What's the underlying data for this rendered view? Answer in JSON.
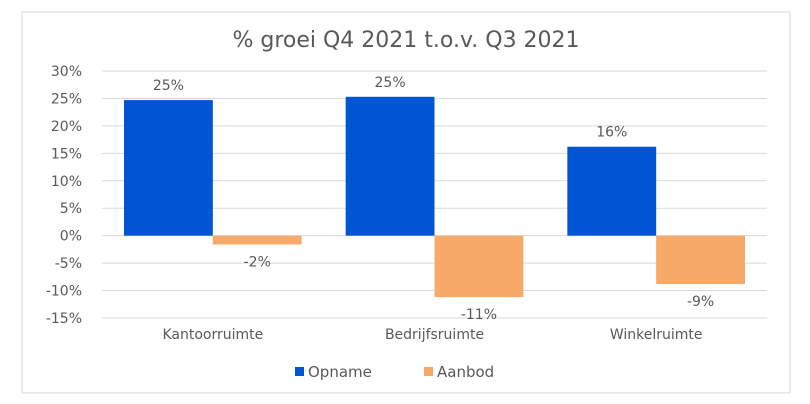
{
  "chart_data": {
    "type": "bar",
    "title": "% groei Q4 2021 t.o.v. Q3 2021",
    "xlabel": "",
    "ylabel": "",
    "categories": [
      "Kantoorruimte",
      "Bedrijfsruimte",
      "Winkelruimte"
    ],
    "series": [
      {
        "name": "Opname",
        "color": "#0055D4",
        "values": [
          24.7,
          25.3,
          16.2
        ],
        "labels": [
          "25%",
          "25%",
          "16%"
        ]
      },
      {
        "name": "Aanbod",
        "color": "#F7A96A",
        "values": [
          -1.6,
          -11.2,
          -8.8
        ],
        "labels": [
          "-2%",
          "-11%",
          "-9%"
        ]
      }
    ],
    "ylim": [
      -15,
      30
    ],
    "yticks": [
      30,
      25,
      20,
      15,
      10,
      5,
      0,
      -5,
      -10,
      -15
    ],
    "ytick_labels": [
      "30%",
      "25%",
      "20%",
      "15%",
      "10%",
      "5%",
      "0%",
      "-5%",
      "-10%",
      "-15%"
    ],
    "grid": true,
    "legend_position": "bottom"
  }
}
